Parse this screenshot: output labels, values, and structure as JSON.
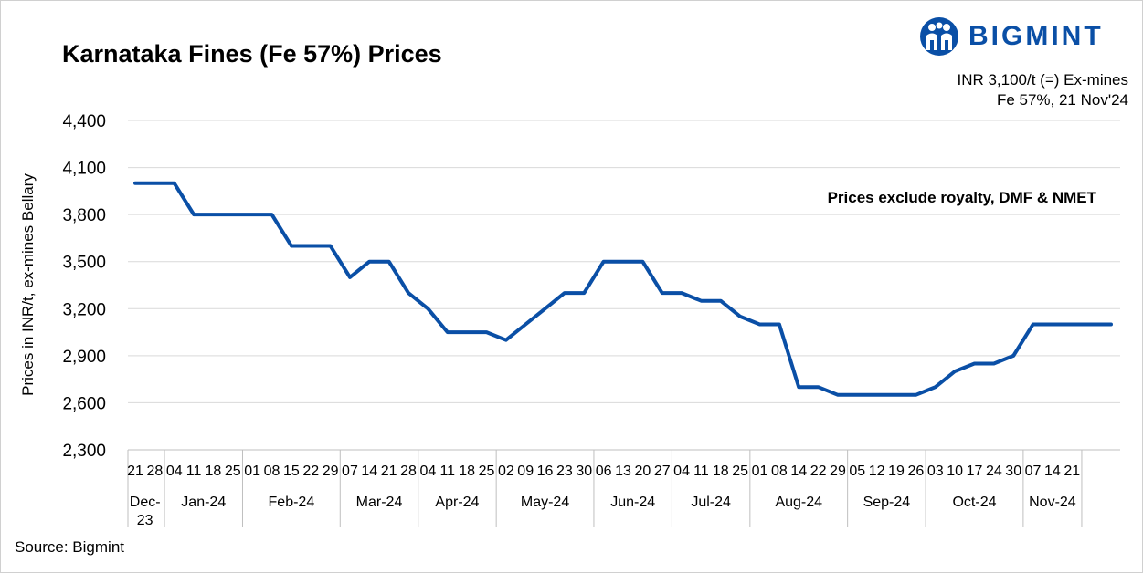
{
  "title": "Karnataka Fines (Fe 57%) Prices",
  "brand": {
    "name": "BIGMINT",
    "logo_icon": "bigmint-people-icon",
    "color": "#0a4fa6"
  },
  "info_lines": [
    "INR 3,100/t (=) Ex-mines",
    "Fe 57%, 21 Nov'24"
  ],
  "source": "Source: Bigmint",
  "chart_data": {
    "type": "line",
    "ylabel": "Prices in INR/t, ex-mines Bellary",
    "xlabel": "",
    "ylim": [
      2300,
      4400
    ],
    "yticks": [
      2300,
      2600,
      2900,
      3200,
      3500,
      3800,
      4100,
      4400
    ],
    "ytick_labels": [
      "2,300",
      "2,600",
      "2,900",
      "3,200",
      "3,500",
      "3,800",
      "4,100",
      "4,400"
    ],
    "grid": true,
    "annotation": "Prices exclude royalty, DMF & NMET",
    "line_color": "#0a4fa6",
    "months": [
      {
        "label": "Dec-23",
        "days": [
          "21",
          "28"
        ]
      },
      {
        "label": "Jan-24",
        "days": [
          "04",
          "11",
          "18",
          "25"
        ]
      },
      {
        "label": "Feb-24",
        "days": [
          "01",
          "08",
          "15",
          "22",
          "29"
        ]
      },
      {
        "label": "Mar-24",
        "days": [
          "07",
          "14",
          "21",
          "28"
        ]
      },
      {
        "label": "Apr-24",
        "days": [
          "04",
          "11",
          "18",
          "25"
        ]
      },
      {
        "label": "May-24",
        "days": [
          "02",
          "09",
          "16",
          "23",
          "30"
        ]
      },
      {
        "label": "Jun-24",
        "days": [
          "06",
          "13",
          "20",
          "27"
        ]
      },
      {
        "label": "Jul-24",
        "days": [
          "04",
          "11",
          "18",
          "25"
        ]
      },
      {
        "label": "Aug-24",
        "days": [
          "01",
          "08",
          "14",
          "22",
          "29"
        ]
      },
      {
        "label": "Sep-24",
        "days": [
          "05",
          "12",
          "19",
          "26"
        ]
      },
      {
        "label": "Oct-24",
        "days": [
          "03",
          "10",
          "17",
          "24",
          "30"
        ]
      },
      {
        "label": "Nov-24",
        "days": [
          "07",
          "14",
          "21"
        ]
      }
    ],
    "values": [
      4000,
      4000,
      4000,
      3800,
      3800,
      3800,
      3800,
      3800,
      3600,
      3600,
      3600,
      3400,
      3500,
      3500,
      3300,
      3200,
      3050,
      3050,
      3050,
      3000,
      3100,
      3200,
      3300,
      3300,
      3500,
      3500,
      3500,
      3300,
      3300,
      3250,
      3250,
      3150,
      3100,
      3100,
      2700,
      2700,
      2650,
      2650,
      2650,
      2650,
      2650,
      2700,
      2800,
      2850,
      2850,
      2900,
      3100,
      3100,
      3100,
      3100,
      3100
    ]
  }
}
